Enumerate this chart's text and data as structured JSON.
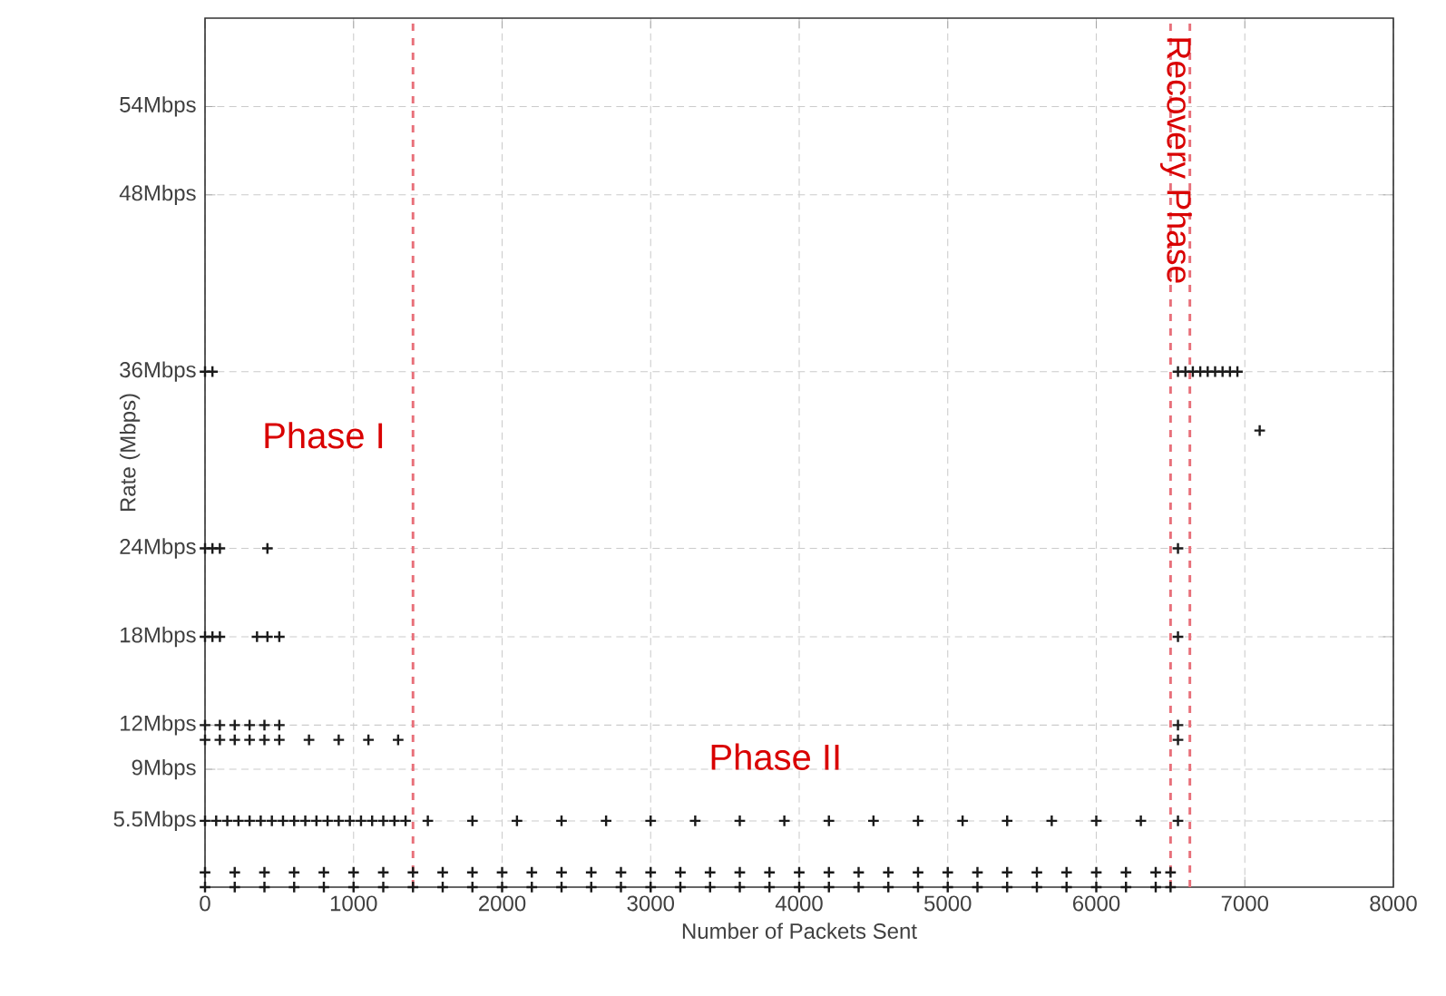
{
  "chart_data": {
    "type": "scatter",
    "xlabel": "Number of Packets Sent",
    "ylabel": "Rate (Mbps)",
    "xlim": [
      0,
      8000
    ],
    "ylim": [
      1,
      60
    ],
    "xticks": [
      0,
      1000,
      2000,
      3000,
      4000,
      5000,
      6000,
      7000,
      8000
    ],
    "yticks": [
      {
        "value": 5.5,
        "label": "5.5Mbps"
      },
      {
        "value": 9,
        "label": "9Mbps"
      },
      {
        "value": 12,
        "label": "12Mbps"
      },
      {
        "value": 18,
        "label": "18Mbps"
      },
      {
        "value": 24,
        "label": "24Mbps"
      },
      {
        "value": 36,
        "label": "36Mbps"
      },
      {
        "value": 48,
        "label": "48Mbps"
      },
      {
        "value": 54,
        "label": "54Mbps"
      }
    ],
    "grid": true,
    "marker": "cross",
    "series": [
      {
        "color": "#1a1a1a",
        "x": [
          0,
          200,
          400,
          600,
          800,
          1000,
          1200,
          1400,
          1600,
          1800,
          2000,
          2200,
          2400,
          2600,
          2800,
          3000,
          3200,
          3400,
          3600,
          3800,
          4000,
          4200,
          4400,
          4600,
          4800,
          5000,
          5200,
          5400,
          5600,
          5800,
          6000,
          6200,
          6400,
          6500,
          0,
          200,
          400,
          600,
          800,
          1000,
          1200,
          1400,
          1600,
          1800,
          2000,
          2200,
          2400,
          2600,
          2800,
          3000,
          3200,
          3400,
          3600,
          3800,
          4000,
          4200,
          4400,
          4600,
          4800,
          5000,
          5200,
          5400,
          5600,
          5800,
          6000,
          6200,
          6400,
          6500,
          0,
          75,
          150,
          225,
          300,
          375,
          450,
          525,
          600,
          675,
          750,
          825,
          900,
          975,
          1050,
          1125,
          1200,
          1275,
          1350,
          1500,
          1800,
          2100,
          2400,
          2700,
          3000,
          3300,
          3600,
          3900,
          4200,
          4500,
          4800,
          5100,
          5400,
          5700,
          6000,
          6300,
          6550,
          0,
          100,
          200,
          300,
          400,
          500,
          700,
          900,
          1100,
          1300,
          6550,
          0,
          100,
          200,
          300,
          400,
          500,
          6550,
          0,
          50,
          100,
          350,
          420,
          500,
          6550,
          0,
          50,
          100,
          420,
          6550,
          0,
          50,
          6550,
          6600,
          6650,
          6700,
          6750,
          6800,
          6850,
          6900,
          6950,
          7100
        ],
        "values": [
          1,
          1,
          1,
          1,
          1,
          1,
          1,
          1,
          1,
          1,
          1,
          1,
          1,
          1,
          1,
          1,
          1,
          1,
          1,
          1,
          1,
          1,
          1,
          1,
          1,
          1,
          1,
          1,
          1,
          1,
          1,
          1,
          1,
          1,
          2,
          2,
          2,
          2,
          2,
          2,
          2,
          2,
          2,
          2,
          2,
          2,
          2,
          2,
          2,
          2,
          2,
          2,
          2,
          2,
          2,
          2,
          2,
          2,
          2,
          2,
          2,
          2,
          2,
          2,
          2,
          2,
          2,
          2,
          5.5,
          5.5,
          5.5,
          5.5,
          5.5,
          5.5,
          5.5,
          5.5,
          5.5,
          5.5,
          5.5,
          5.5,
          5.5,
          5.5,
          5.5,
          5.5,
          5.5,
          5.5,
          5.5,
          5.5,
          5.5,
          5.5,
          5.5,
          5.5,
          5.5,
          5.5,
          5.5,
          5.5,
          5.5,
          5.5,
          5.5,
          5.5,
          5.5,
          5.5,
          5.5,
          5.5,
          5.5,
          11,
          11,
          11,
          11,
          11,
          11,
          11,
          11,
          11,
          11,
          11,
          12,
          12,
          12,
          12,
          12,
          12,
          12,
          18,
          18,
          18,
          18,
          18,
          18,
          18,
          24,
          24,
          24,
          24,
          24,
          36,
          36,
          36,
          36,
          36,
          36,
          36,
          36,
          36,
          36,
          36,
          32
        ]
      }
    ],
    "ref_lines": [
      {
        "axis": "x",
        "value": 1400,
        "color": "#e8707a",
        "line_style": "dashed"
      },
      {
        "axis": "x",
        "value": 6500,
        "color": "#e8707a",
        "line_style": "dashed"
      },
      {
        "axis": "x",
        "value": 6630,
        "color": "#e8707a",
        "line_style": "dashed",
        "label": "Recovery Phase"
      }
    ],
    "annotations": [
      "Phase I",
      "Phase II"
    ]
  }
}
